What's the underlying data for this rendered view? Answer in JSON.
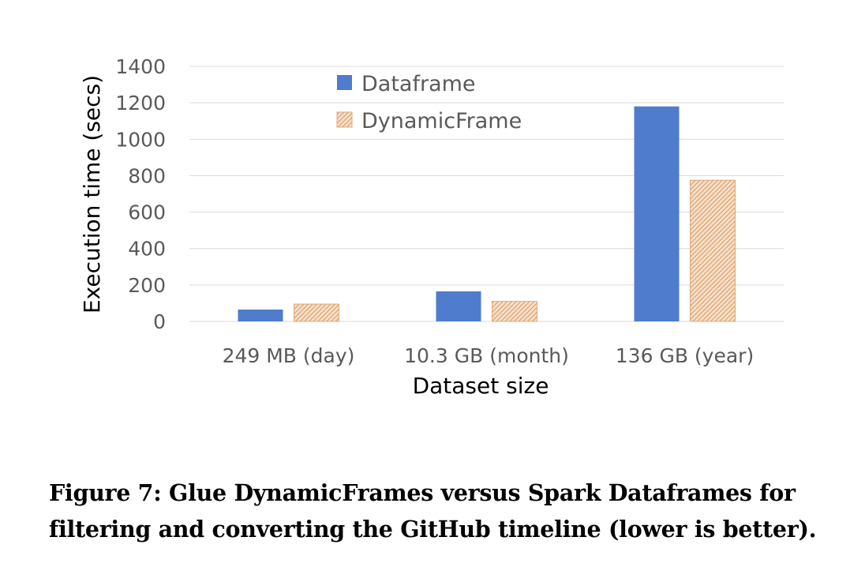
{
  "chart_data": {
    "type": "bar",
    "categories": [
      "249 MB (day)",
      "10.3 GB (month)",
      "136 GB (year)"
    ],
    "series": [
      {
        "name": "Dataframe",
        "values": [
          65,
          165,
          1180
        ],
        "color": "#4f7ccc",
        "pattern": "solid"
      },
      {
        "name": "DynamicFrame",
        "values": [
          95,
          110,
          775
        ],
        "color": "#e1aa7a",
        "pattern": "diagonal-hatch"
      }
    ],
    "xlabel": "Dataset size",
    "ylabel": "Execution time (secs)",
    "ylim": [
      0,
      1400
    ],
    "yticks": [
      "0",
      "200",
      "400",
      "600",
      "800",
      "1000",
      "1200",
      "1400"
    ],
    "grid": true,
    "legend_position": "top-left"
  },
  "caption": {
    "line1": "Figure 7: Glue DynamicFrames versus Spark Dataframes for",
    "line2": "filtering and converting the GitHub timeline (lower is better)."
  }
}
